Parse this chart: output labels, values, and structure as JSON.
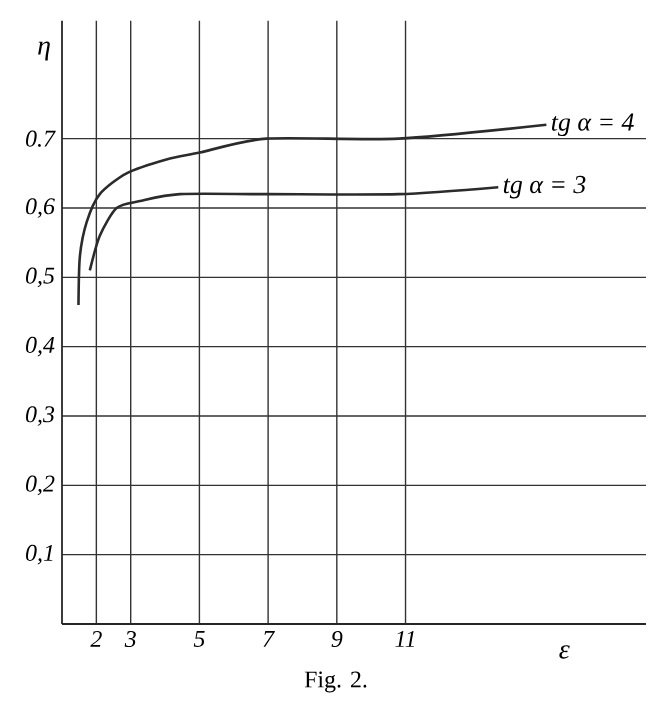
{
  "chart_data": {
    "type": "line",
    "xlabel": "ε",
    "ylabel": "η",
    "annotations": [
      "Fig. 2."
    ],
    "xlim": [
      1,
      18
    ],
    "ylim": [
      0,
      0.87
    ],
    "xticks": [
      2,
      3,
      5,
      7,
      9,
      11
    ],
    "yticks": [
      {
        "value": 0.1,
        "label": "0,1"
      },
      {
        "value": 0.2,
        "label": "0,2"
      },
      {
        "value": 0.3,
        "label": "0,3"
      },
      {
        "value": 0.4,
        "label": "0,4"
      },
      {
        "value": 0.5,
        "label": "0,5"
      },
      {
        "value": 0.6,
        "label": "0,6"
      },
      {
        "value": 0.7,
        "label": "0.7"
      }
    ],
    "grid": true,
    "marker": "none",
    "line_style": "solid",
    "series": [
      {
        "name": "tg α = 4",
        "color": "#2b2b2b",
        "x": [
          1.48,
          1.52,
          1.72,
          2.1,
          2.88,
          4.04,
          5.01,
          6.95,
          10.8,
          15.1
        ],
        "values": [
          0.46,
          0.53,
          0.58,
          0.62,
          0.65,
          0.67,
          0.68,
          0.7,
          0.7,
          0.72
        ]
      },
      {
        "name": "tg α = 3",
        "color": "#2b2b2b",
        "x": [
          1.81,
          2.1,
          2.59,
          3.27,
          4.43,
          6.95,
          10.8,
          13.7
        ],
        "values": [
          0.51,
          0.56,
          0.6,
          0.61,
          0.62,
          0.62,
          0.62,
          0.63
        ]
      }
    ]
  }
}
